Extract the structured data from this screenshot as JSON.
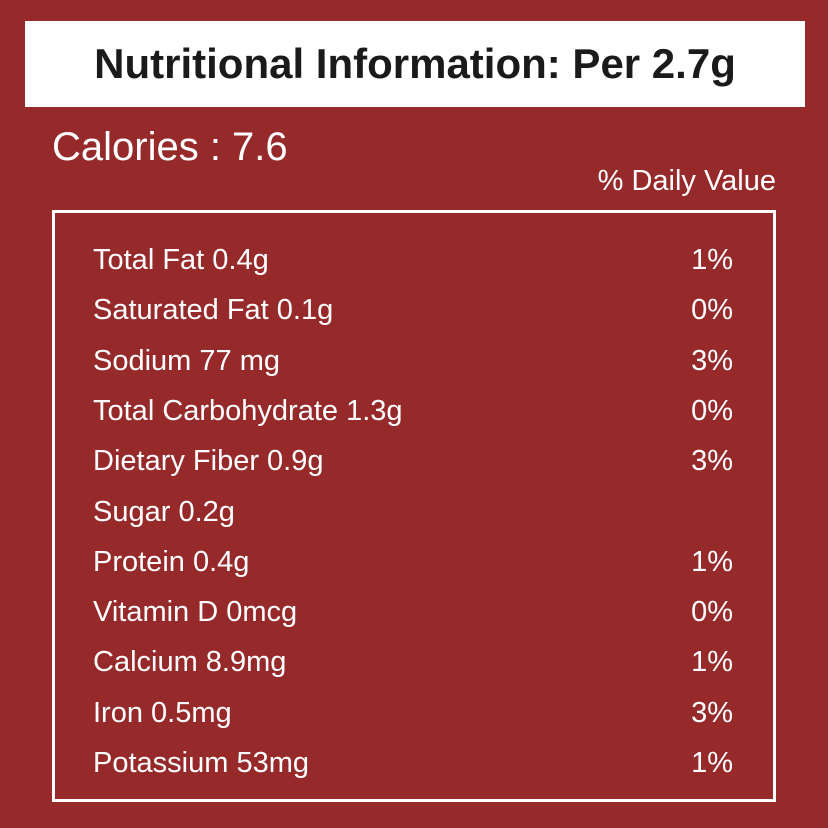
{
  "header": {
    "title": "Nutritional Information: Per 2.7g"
  },
  "calories": "Calories : 7.6",
  "daily_value_heading": "% Daily Value",
  "table": {
    "rows": [
      [
        "Total Fat 0.4g",
        "1%"
      ],
      [
        "Saturated Fat 0.1g",
        "0%"
      ],
      [
        "Sodium 77 mg",
        "3%"
      ],
      [
        "Total Carbohydrate 1.3g",
        "0%"
      ],
      [
        "Dietary Fiber 0.9g",
        "3%"
      ],
      [
        "Sugar 0.2g",
        null
      ],
      [
        "Protein 0.4g",
        "1%"
      ],
      [
        "Vitamin D 0mcg",
        "0%"
      ],
      [
        "Calcium 8.9mg",
        "1%"
      ],
      [
        "Iron 0.5mg",
        "3%"
      ],
      [
        "Potassium 53mg",
        "1%"
      ]
    ]
  }
}
